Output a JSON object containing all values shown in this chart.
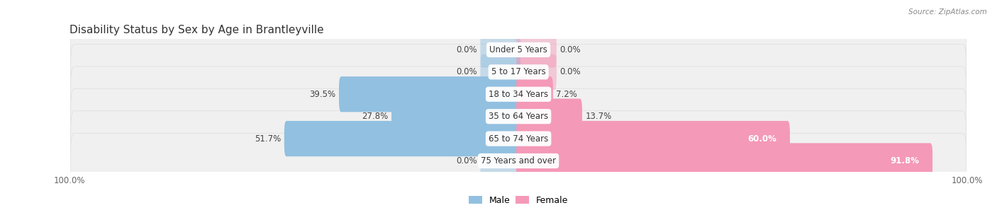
{
  "title": "Disability Status by Sex by Age in Brantleyville",
  "source": "Source: ZipAtlas.com",
  "categories": [
    "Under 5 Years",
    "5 to 17 Years",
    "18 to 34 Years",
    "35 to 64 Years",
    "65 to 74 Years",
    "75 Years and over"
  ],
  "male_values": [
    0.0,
    0.0,
    39.5,
    27.8,
    51.7,
    0.0
  ],
  "female_values": [
    0.0,
    0.0,
    7.2,
    13.7,
    60.0,
    91.8
  ],
  "male_color": "#92C0E0",
  "female_color": "#F499B7",
  "female_color_dark": "#E8558A",
  "row_bg_color": "#F0F0F0",
  "row_border_color": "#DDDDDD",
  "max_val": 100.0,
  "stub_val": 8.0,
  "title_fontsize": 11,
  "label_fontsize": 8.5,
  "value_fontsize": 8.5,
  "axis_label_fontsize": 8.5,
  "legend_fontsize": 9,
  "fig_width": 14.06,
  "fig_height": 3.04,
  "dpi": 100
}
